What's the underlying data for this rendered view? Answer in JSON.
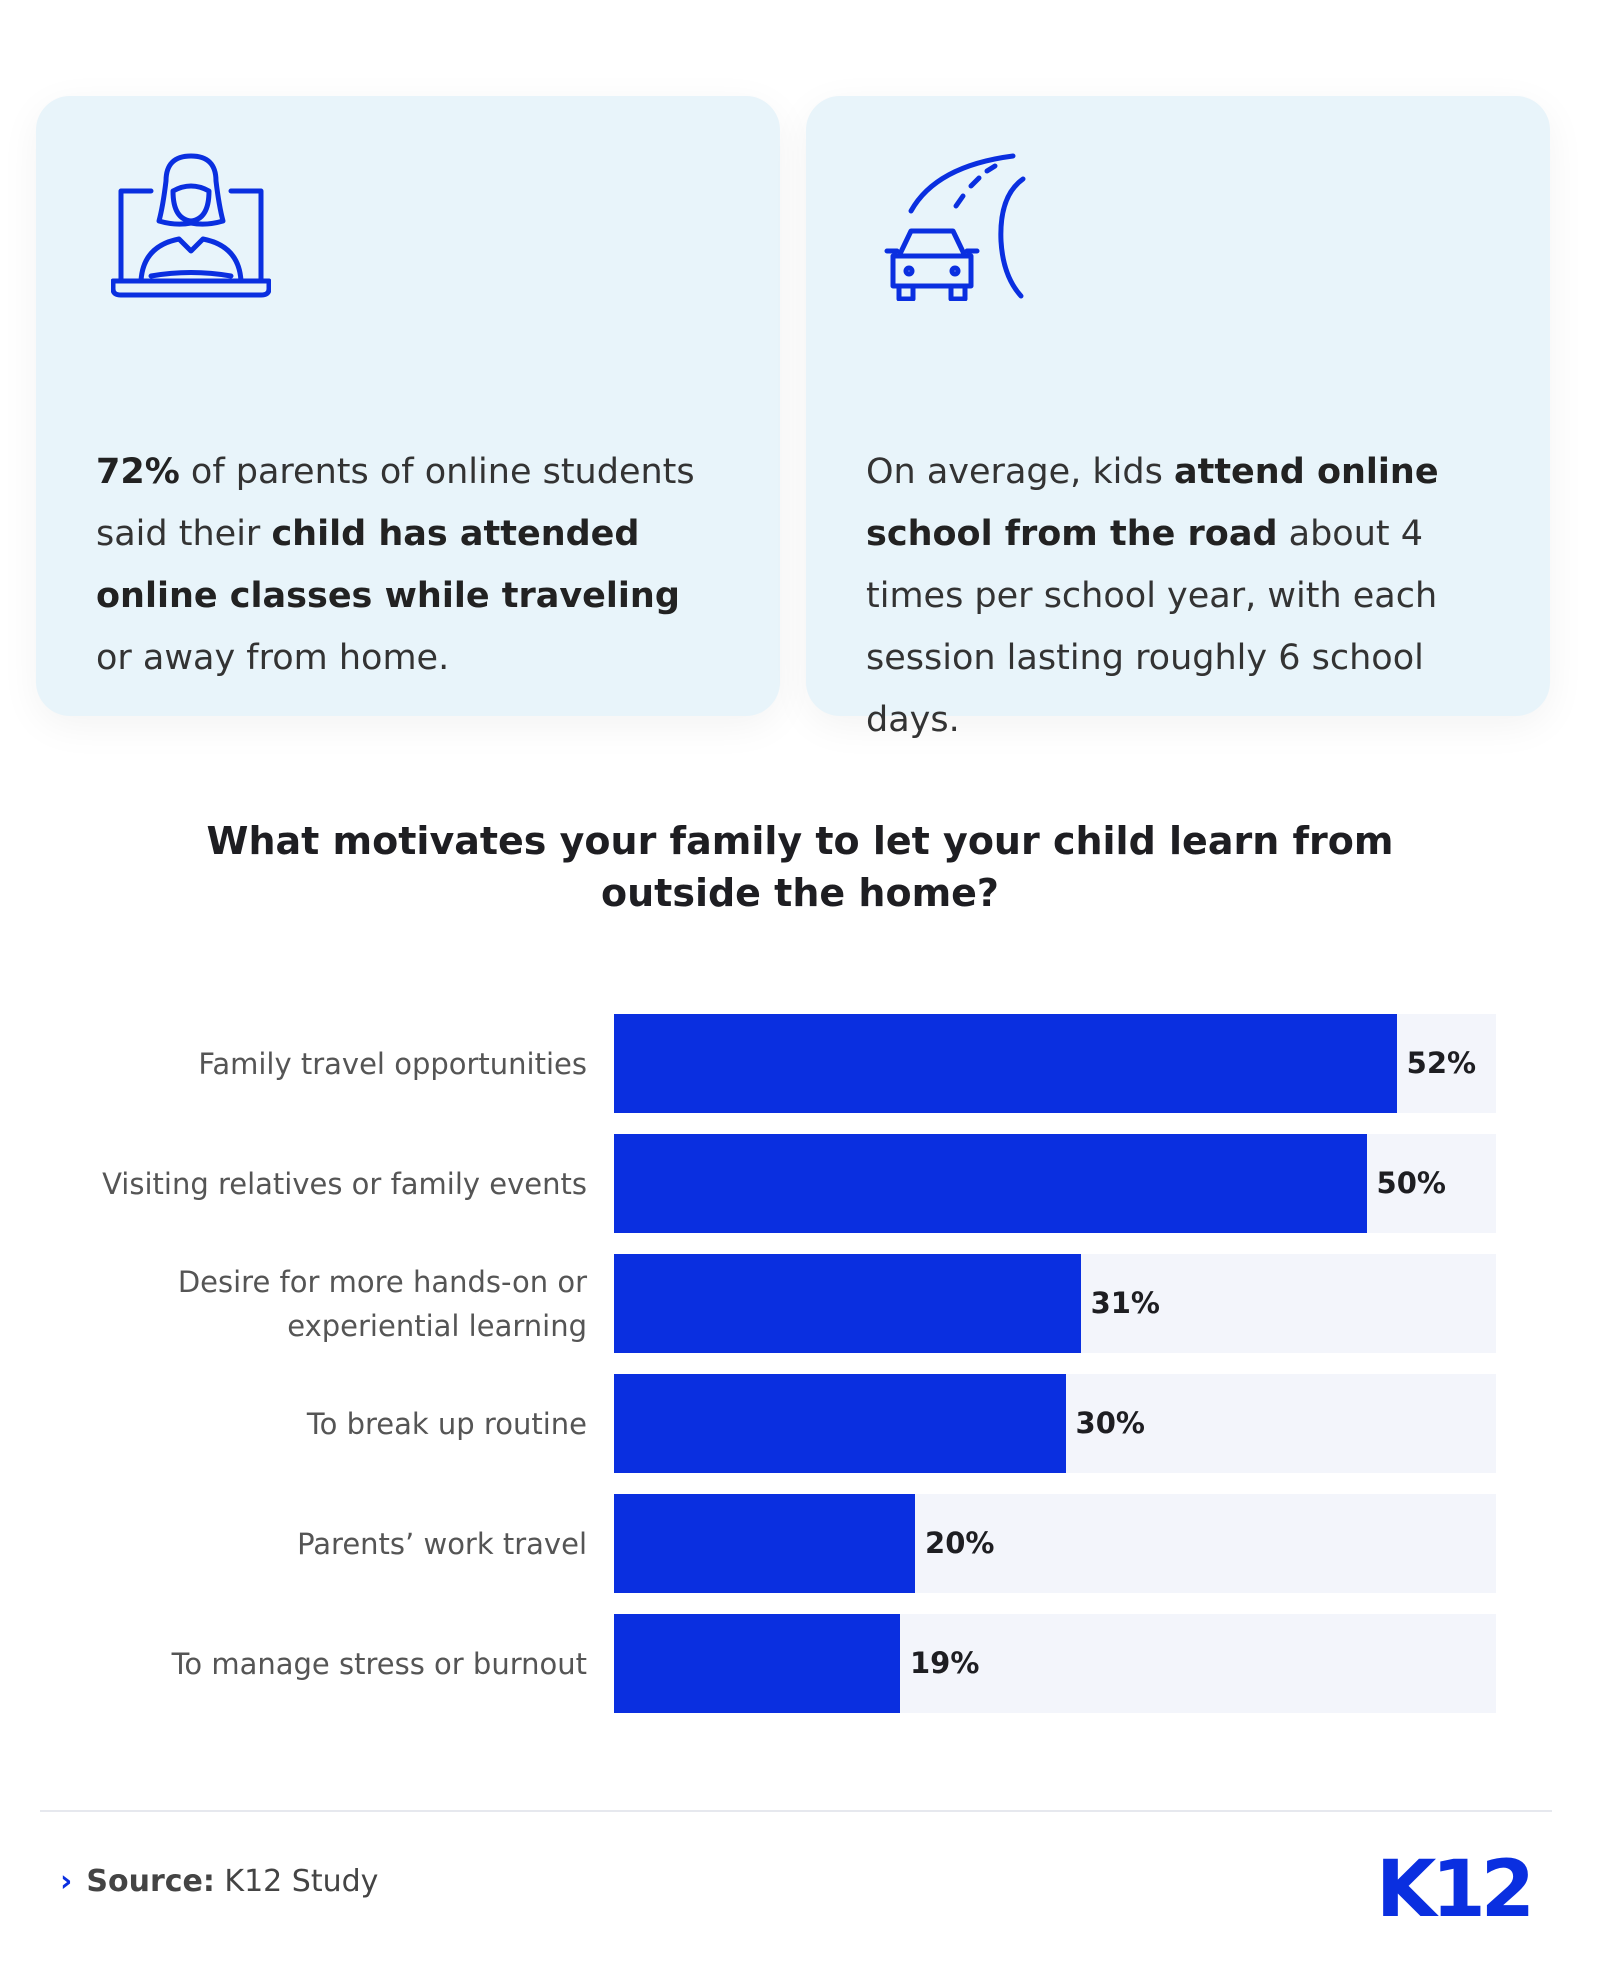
{
  "cards": [
    {
      "segments": [
        "72%",
        " of parents of online students said their ",
        "child has attended online classes while traveling",
        " or away from home."
      ]
    },
    {
      "segments": [
        "On average, kids ",
        "attend online school from the road",
        " about 4 times per school year, with each session lasting roughly 6 school days."
      ]
    }
  ],
  "chart_data": {
    "type": "hbar",
    "title": "What motivates your family to let your child learn from outside the home?",
    "categories": [
      "Family travel opportunities",
      "Visiting relatives or family events",
      "Desire for more hands-on or experiential learning",
      "To break up routine",
      "Parents’ work travel",
      "To manage stress or burnout"
    ],
    "values": [
      52,
      50,
      31,
      30,
      20,
      19
    ],
    "value_labels": [
      "52%",
      "50%",
      "31%",
      "30%",
      "20%",
      "19%"
    ],
    "color": "#0a2fe0",
    "xlim": [
      0,
      58.6
    ]
  },
  "source": {
    "label": "Source:",
    "text": "K12 Study"
  },
  "logo": "K12"
}
